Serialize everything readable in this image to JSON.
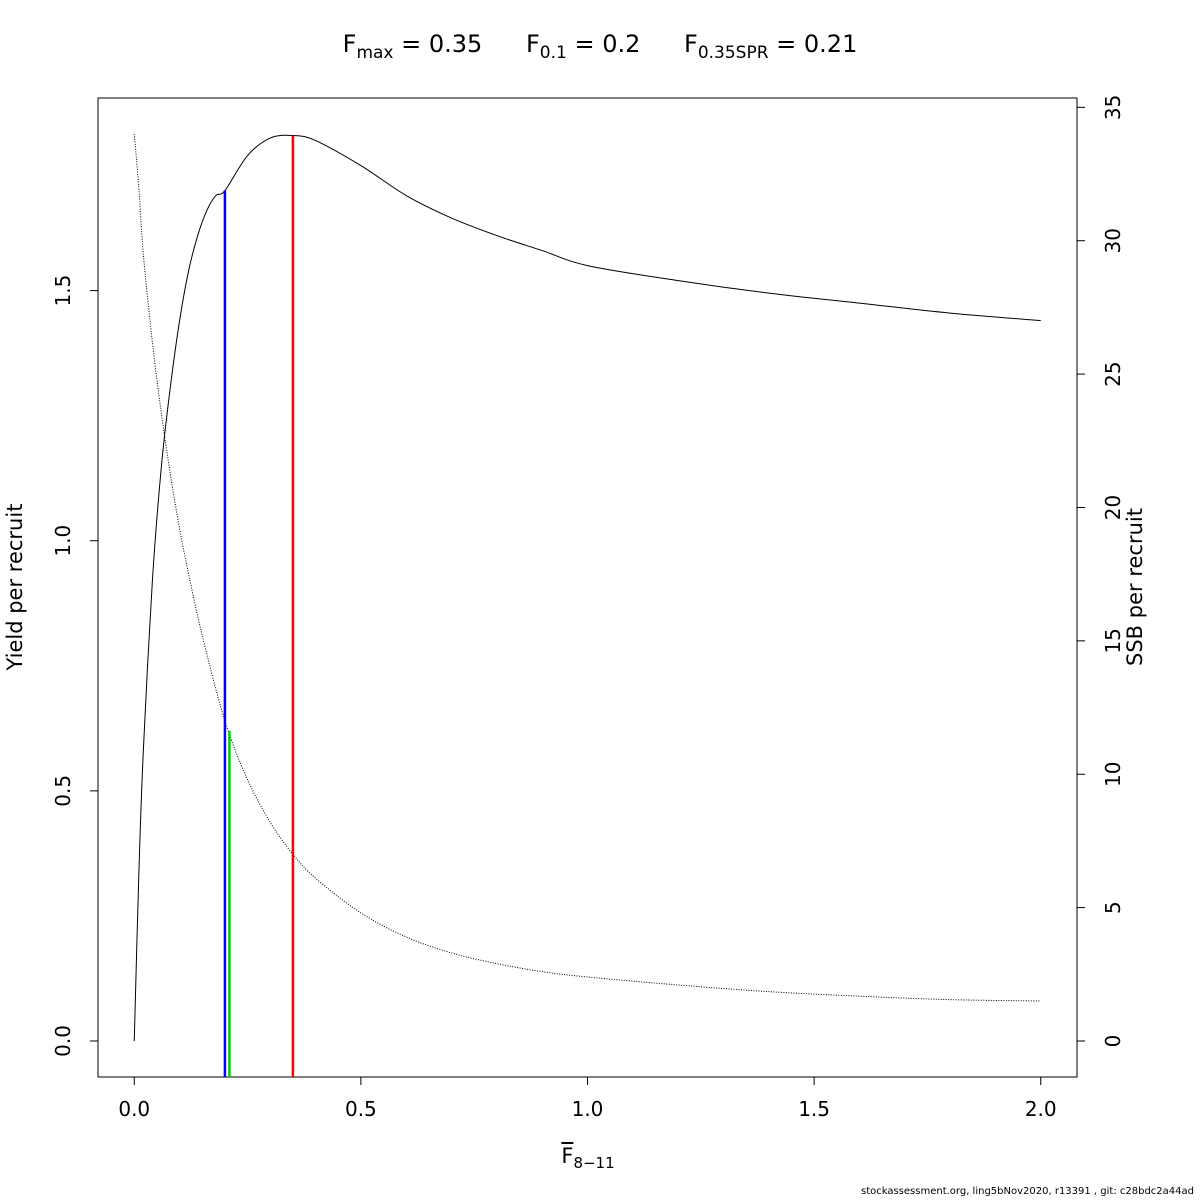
{
  "title": {
    "fmax": {
      "label": "F",
      "sub": "max",
      "value": "= 0.35"
    },
    "f01": {
      "label": "F",
      "sub": "0.1",
      "value": "= 0.2"
    },
    "fspr": {
      "label": "F",
      "sub": "0.35SPR",
      "value": "= 0.21"
    }
  },
  "footer": "stockassessment.org, ling5bNov2020, r13391 , git: c28bdc2a44ad",
  "chart_data": {
    "type": "line",
    "xlabel": {
      "main": "F",
      "sub": "8−11"
    },
    "ylabel_left": "Yield per recruit",
    "ylabel_right": "SSB per recruit",
    "xlim": [
      -0.08,
      2.08
    ],
    "ylim_left": [
      -0.072,
      1.885
    ],
    "ylim_right": [
      -1.35,
      35.35
    ],
    "x_ticks": [
      "0.0",
      "0.5",
      "1.0",
      "1.5",
      "2.0"
    ],
    "x_tick_values": [
      0,
      0.5,
      1.0,
      1.5,
      2.0
    ],
    "y_left_ticks": [
      "0.0",
      "0.5",
      "1.0",
      "1.5"
    ],
    "y_left_tick_values": [
      0,
      0.5,
      1.0,
      1.5
    ],
    "y_right_ticks": [
      "0",
      "5",
      "10",
      "15",
      "20",
      "25",
      "30",
      "35"
    ],
    "y_right_tick_values": [
      0,
      5,
      10,
      15,
      20,
      25,
      30,
      35
    ],
    "series": [
      {
        "axis": "left",
        "style": "solid",
        "x": [
          0,
          0.01,
          0.02,
          0.04,
          0.06,
          0.08,
          0.1,
          0.12,
          0.14,
          0.16,
          0.18,
          0.2,
          0.25,
          0.3,
          0.35,
          0.4,
          0.5,
          0.6,
          0.7,
          0.8,
          0.9,
          1.0,
          1.2,
          1.4,
          1.6,
          1.8,
          2.0
        ],
        "values": [
          0,
          0.33,
          0.58,
          0.92,
          1.15,
          1.31,
          1.44,
          1.54,
          1.61,
          1.66,
          1.69,
          1.7,
          1.77,
          1.805,
          1.81,
          1.8,
          1.75,
          1.69,
          1.645,
          1.61,
          1.58,
          1.55,
          1.52,
          1.495,
          1.475,
          1.455,
          1.44
        ]
      },
      {
        "axis": "right",
        "style": "dotted",
        "x": [
          0,
          0.01,
          0.02,
          0.04,
          0.06,
          0.08,
          0.1,
          0.12,
          0.15,
          0.2,
          0.25,
          0.3,
          0.35,
          0.4,
          0.5,
          0.6,
          0.7,
          0.8,
          0.9,
          1.0,
          1.2,
          1.4,
          1.6,
          1.8,
          2.0
        ],
        "values": [
          34.0,
          32.0,
          29.5,
          26.2,
          23.5,
          21.2,
          19.2,
          17.5,
          15.2,
          12.0,
          9.8,
          8.2,
          7.0,
          6.1,
          4.8,
          3.9,
          3.3,
          2.9,
          2.6,
          2.4,
          2.1,
          1.85,
          1.68,
          1.55,
          1.5
        ]
      }
    ],
    "reference_lines": [
      {
        "name": "Fmax",
        "x": 0.35,
        "color": "#ff0000",
        "y_top": 1.81
      },
      {
        "name": "F0.1",
        "x": 0.2,
        "color": "#0000ff",
        "y_top": 1.7
      },
      {
        "name": "F0.35SPR",
        "x": 0.21,
        "color": "#00cc00",
        "y_top": 0.62
      }
    ]
  }
}
